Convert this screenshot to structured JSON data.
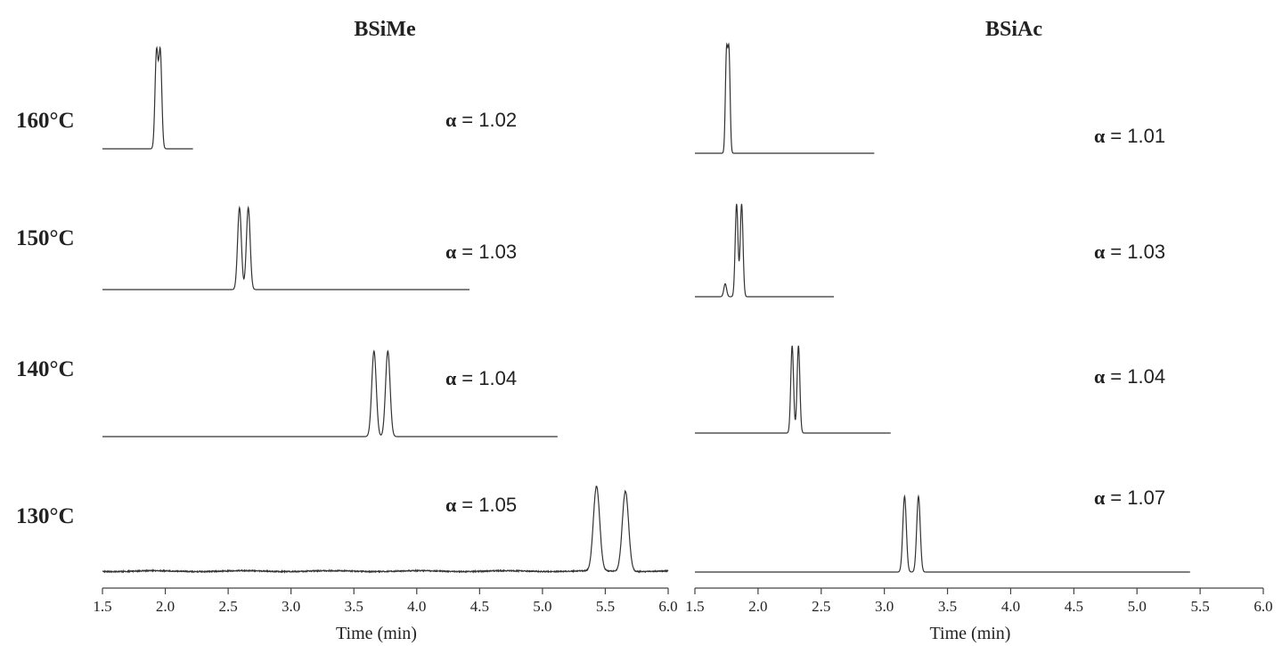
{
  "chart_data": [
    {
      "type": "line",
      "title": "BSiMe",
      "xlabel": "Time (min)",
      "ylabel": "",
      "xlim": [
        1.5,
        6.0
      ],
      "ticks": [
        "1.5",
        "2.0",
        "2.5",
        "3.0",
        "3.5",
        "4.0",
        "4.5",
        "5.0",
        "5.5",
        "6.0"
      ],
      "grid": false,
      "traces": [
        {
          "temperature": "160°C",
          "alpha_text": "= 1.02",
          "x_end": 2.22,
          "peaks": [
            {
              "t": 1.93,
              "h": 1.0
            },
            {
              "t": 1.96,
              "h": 1.0
            }
          ],
          "sigma": 0.012,
          "noise": 0.0
        },
        {
          "temperature": "150°C",
          "alpha_text": "= 1.03",
          "x_end": 4.42,
          "peaks": [
            {
              "t": 2.59,
              "h": 1.0
            },
            {
              "t": 2.66,
              "h": 1.0
            }
          ],
          "sigma": 0.015,
          "noise": 0.0
        },
        {
          "temperature": "140°C",
          "alpha_text": "= 1.04",
          "x_end": 5.12,
          "peaks": [
            {
              "t": 3.66,
              "h": 1.0
            },
            {
              "t": 3.77,
              "h": 1.0
            }
          ],
          "sigma": 0.018,
          "noise": 0.0
        },
        {
          "temperature": "130°C",
          "alpha_text": "= 1.05",
          "x_end": 6.0,
          "peaks": [
            {
              "t": 5.43,
              "h": 1.0
            },
            {
              "t": 5.66,
              "h": 0.95
            }
          ],
          "sigma": 0.025,
          "noise": 0.6
        }
      ]
    },
    {
      "type": "line",
      "title": "BSiAc",
      "xlabel": "Time (min)",
      "ylabel": "",
      "xlim": [
        1.5,
        6.0
      ],
      "ticks": [
        "1.5",
        "2.0",
        "2.5",
        "3.0",
        "3.5",
        "4.0",
        "4.5",
        "5.0",
        "5.5",
        "6.0"
      ],
      "grid": false,
      "traces": [
        {
          "temperature": "160°C",
          "alpha_text": "= 1.01",
          "x_end": 2.92,
          "peaks": [
            {
              "t": 1.75,
              "h": 1.0
            },
            {
              "t": 1.77,
              "h": 1.0
            }
          ],
          "sigma": 0.009,
          "noise": 0.0
        },
        {
          "temperature": "150°C",
          "alpha_text": "= 1.03",
          "x_end": 2.6,
          "peaks": [
            {
              "t": 1.74,
              "h": 0.14
            },
            {
              "t": 1.83,
              "h": 1.0
            },
            {
              "t": 1.87,
              "h": 1.0
            }
          ],
          "sigma": 0.011,
          "noise": 0.0
        },
        {
          "temperature": "140°C",
          "alpha_text": "= 1.04",
          "x_end": 3.05,
          "peaks": [
            {
              "t": 2.27,
              "h": 1.0
            },
            {
              "t": 2.32,
              "h": 1.0
            }
          ],
          "sigma": 0.011,
          "noise": 0.0
        },
        {
          "temperature": "130°C",
          "alpha_text": "= 1.07",
          "x_end": 5.42,
          "peaks": [
            {
              "t": 3.16,
              "h": 1.0
            },
            {
              "t": 3.27,
              "h": 1.0
            }
          ],
          "sigma": 0.014,
          "noise": 0.0
        }
      ]
    }
  ],
  "alpha_symbol": "α",
  "colors": {
    "trace": "#333333",
    "axis": "#444444",
    "text": "#222222"
  }
}
